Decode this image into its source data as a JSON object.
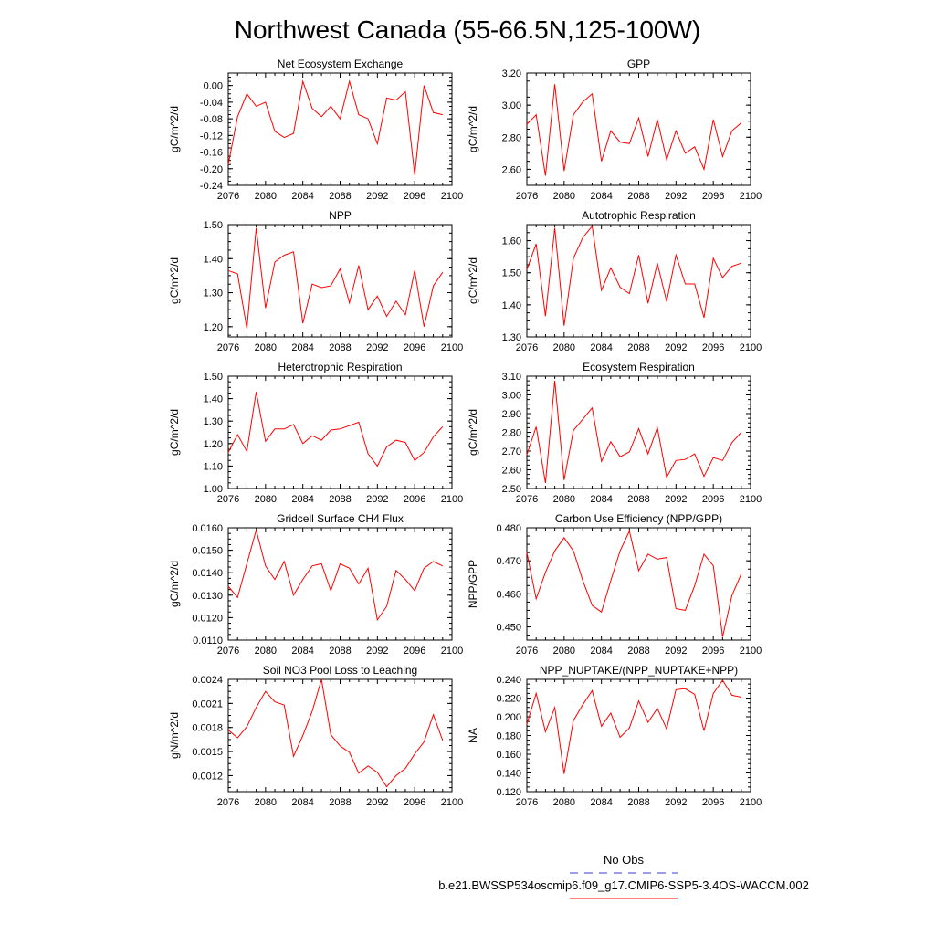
{
  "figure": {
    "title": "Northwest Canada (55-66.5N,125-100W)",
    "legend": {
      "obs_label": "No Obs",
      "obs_color": "#3b3bd6",
      "case_label": "b.e21.BWSSP534oscmip6.f09_g17.CMIP6-SSP5-3.4OS-WACCM.002",
      "case_color": "#ff0000"
    },
    "line_color": "#ff0000"
  },
  "chart_data": [
    {
      "type": "line",
      "title": "Net Ecosystem Exchange",
      "ylabel": "gC/m^2/d",
      "xlabel": "",
      "xlim": [
        2076,
        2100
      ],
      "ylim": [
        -0.24,
        0.03
      ],
      "xticks": [
        "2076",
        "2080",
        "2084",
        "2088",
        "2092",
        "2096",
        "2100"
      ],
      "yticks": [
        "0.00",
        "-0.04",
        "-0.08",
        "-0.12",
        "-0.16",
        "-0.20",
        "-0.24"
      ],
      "x": [
        2076,
        2077,
        2078,
        2079,
        2080,
        2081,
        2082,
        2083,
        2084,
        2085,
        2086,
        2087,
        2088,
        2089,
        2090,
        2091,
        2092,
        2093,
        2094,
        2095,
        2096,
        2097,
        2098,
        2099
      ],
      "series": [
        {
          "values": [
            -0.19,
            -0.075,
            -0.02,
            -0.05,
            -0.04,
            -0.11,
            -0.125,
            -0.115,
            0.01,
            -0.055,
            -0.075,
            -0.05,
            -0.08,
            0.01,
            -0.07,
            -0.08,
            -0.14,
            -0.03,
            -0.035,
            -0.015,
            -0.215,
            0.0,
            -0.065,
            -0.07
          ]
        }
      ]
    },
    {
      "type": "line",
      "title": "GPP",
      "ylabel": "gC/m^2/d",
      "xlabel": "",
      "xlim": [
        2076,
        2100
      ],
      "ylim": [
        2.5,
        3.2
      ],
      "xticks": [
        "2076",
        "2080",
        "2084",
        "2088",
        "2092",
        "2096",
        "2100"
      ],
      "yticks": [
        "2.60",
        "2.80",
        "3.00",
        "3.20"
      ],
      "x": [
        2076,
        2077,
        2078,
        2079,
        2080,
        2081,
        2082,
        2083,
        2084,
        2085,
        2086,
        2087,
        2088,
        2089,
        2090,
        2091,
        2092,
        2093,
        2094,
        2095,
        2096,
        2097,
        2098,
        2099
      ],
      "series": [
        {
          "values": [
            2.88,
            2.94,
            2.56,
            3.13,
            2.59,
            2.94,
            3.02,
            3.07,
            2.65,
            2.84,
            2.77,
            2.76,
            2.92,
            2.68,
            2.91,
            2.66,
            2.84,
            2.7,
            2.74,
            2.6,
            2.91,
            2.68,
            2.84,
            2.89
          ]
        }
      ]
    },
    {
      "type": "line",
      "title": "NPP",
      "ylabel": "gC/m^2/d",
      "xlabel": "",
      "xlim": [
        2076,
        2100
      ],
      "ylim": [
        1.17,
        1.5
      ],
      "xticks": [
        "2076",
        "2080",
        "2084",
        "2088",
        "2092",
        "2096",
        "2100"
      ],
      "yticks": [
        "1.20",
        "1.30",
        "1.40",
        "1.50"
      ],
      "x": [
        2076,
        2077,
        2078,
        2079,
        2080,
        2081,
        2082,
        2083,
        2084,
        2085,
        2086,
        2087,
        2088,
        2089,
        2090,
        2091,
        2092,
        2093,
        2094,
        2095,
        2096,
        2097,
        2098,
        2099
      ],
      "series": [
        {
          "values": [
            1.365,
            1.355,
            1.195,
            1.49,
            1.255,
            1.39,
            1.41,
            1.42,
            1.21,
            1.325,
            1.315,
            1.32,
            1.37,
            1.27,
            1.38,
            1.25,
            1.29,
            1.23,
            1.275,
            1.235,
            1.365,
            1.2,
            1.32,
            1.36
          ]
        }
      ]
    },
    {
      "type": "line",
      "title": "Autotrophic Respiration",
      "ylabel": "gC/m^2/d",
      "xlabel": "",
      "xlim": [
        2076,
        2100
      ],
      "ylim": [
        1.3,
        1.65
      ],
      "xticks": [
        "2076",
        "2080",
        "2084",
        "2088",
        "2092",
        "2096",
        "2100"
      ],
      "yticks": [
        "1.30",
        "1.40",
        "1.50",
        "1.60"
      ],
      "x": [
        2076,
        2077,
        2078,
        2079,
        2080,
        2081,
        2082,
        2083,
        2084,
        2085,
        2086,
        2087,
        2088,
        2089,
        2090,
        2091,
        2092,
        2093,
        2094,
        2095,
        2096,
        2097,
        2098,
        2099
      ],
      "series": [
        {
          "values": [
            1.51,
            1.59,
            1.365,
            1.64,
            1.335,
            1.545,
            1.61,
            1.645,
            1.445,
            1.515,
            1.455,
            1.435,
            1.555,
            1.405,
            1.53,
            1.41,
            1.555,
            1.465,
            1.465,
            1.36,
            1.545,
            1.485,
            1.52,
            1.53
          ]
        }
      ]
    },
    {
      "type": "line",
      "title": "Heterotrophic Respiration",
      "ylabel": "gC/m^2/d",
      "xlabel": "",
      "xlim": [
        2076,
        2100
      ],
      "ylim": [
        1.0,
        1.5
      ],
      "xticks": [
        "2076",
        "2080",
        "2084",
        "2088",
        "2092",
        "2096",
        "2100"
      ],
      "yticks": [
        "1.00",
        "1.10",
        "1.20",
        "1.30",
        "1.40",
        "1.50"
      ],
      "x": [
        2076,
        2077,
        2078,
        2079,
        2080,
        2081,
        2082,
        2083,
        2084,
        2085,
        2086,
        2087,
        2088,
        2089,
        2090,
        2091,
        2092,
        2093,
        2094,
        2095,
        2096,
        2097,
        2098,
        2099
      ],
      "series": [
        {
          "values": [
            1.16,
            1.24,
            1.165,
            1.43,
            1.21,
            1.265,
            1.265,
            1.285,
            1.2,
            1.235,
            1.215,
            1.26,
            1.265,
            1.28,
            1.295,
            1.155,
            1.1,
            1.185,
            1.215,
            1.205,
            1.125,
            1.16,
            1.23,
            1.275
          ]
        }
      ]
    },
    {
      "type": "line",
      "title": "Ecosystem Respiration",
      "ylabel": "gC/m^2/d",
      "xlabel": "",
      "xlim": [
        2076,
        2100
      ],
      "ylim": [
        2.5,
        3.1
      ],
      "xticks": [
        "2076",
        "2080",
        "2084",
        "2088",
        "2092",
        "2096",
        "2100"
      ],
      "yticks": [
        "2.50",
        "2.60",
        "2.70",
        "2.80",
        "2.90",
        "3.00",
        "3.10"
      ],
      "x": [
        2076,
        2077,
        2078,
        2079,
        2080,
        2081,
        2082,
        2083,
        2084,
        2085,
        2086,
        2087,
        2088,
        2089,
        2090,
        2091,
        2092,
        2093,
        2094,
        2095,
        2096,
        2097,
        2098,
        2099
      ],
      "series": [
        {
          "values": [
            2.68,
            2.83,
            2.53,
            3.075,
            2.545,
            2.81,
            2.87,
            2.93,
            2.645,
            2.75,
            2.67,
            2.695,
            2.82,
            2.685,
            2.825,
            2.56,
            2.65,
            2.655,
            2.685,
            2.565,
            2.665,
            2.65,
            2.745,
            2.8
          ]
        }
      ]
    },
    {
      "type": "line",
      "title": "Gridcell Surface CH4 Flux",
      "ylabel": "gC/m^2/d",
      "xlabel": "",
      "xlim": [
        2076,
        2100
      ],
      "ylim": [
        0.011,
        0.016
      ],
      "xticks": [
        "2076",
        "2080",
        "2084",
        "2088",
        "2092",
        "2096",
        "2100"
      ],
      "yticks": [
        "0.0110",
        "0.0120",
        "0.0130",
        "0.0140",
        "0.0150",
        "0.0160"
      ],
      "x": [
        2076,
        2077,
        2078,
        2079,
        2080,
        2081,
        2082,
        2083,
        2084,
        2085,
        2086,
        2087,
        2088,
        2089,
        2090,
        2091,
        2092,
        2093,
        2094,
        2095,
        2096,
        2097,
        2098,
        2099
      ],
      "series": [
        {
          "values": [
            0.0134,
            0.0129,
            0.0144,
            0.0159,
            0.0143,
            0.0137,
            0.0145,
            0.013,
            0.0137,
            0.0143,
            0.0144,
            0.0132,
            0.0144,
            0.0142,
            0.0135,
            0.0142,
            0.0119,
            0.0125,
            0.0141,
            0.0137,
            0.0132,
            0.0142,
            0.0145,
            0.0143
          ]
        }
      ]
    },
    {
      "type": "line",
      "title": "Carbon Use Efficiency (NPP/GPP)",
      "ylabel": "NPP/GPP",
      "xlabel": "",
      "xlim": [
        2076,
        2100
      ],
      "ylim": [
        0.446,
        0.48
      ],
      "xticks": [
        "2076",
        "2080",
        "2084",
        "2088",
        "2092",
        "2096",
        "2100"
      ],
      "yticks": [
        "0.450",
        "0.460",
        "0.470",
        "0.480"
      ],
      "x": [
        2076,
        2077,
        2078,
        2079,
        2080,
        2081,
        2082,
        2083,
        2084,
        2085,
        2086,
        2087,
        2088,
        2089,
        2090,
        2091,
        2092,
        2093,
        2094,
        2095,
        2096,
        2097,
        2098,
        2099
      ],
      "series": [
        {
          "values": [
            0.4725,
            0.4585,
            0.4665,
            0.473,
            0.477,
            0.473,
            0.464,
            0.4565,
            0.4545,
            0.464,
            0.473,
            0.479,
            0.467,
            0.472,
            0.4705,
            0.471,
            0.4555,
            0.455,
            0.4625,
            0.472,
            0.4685,
            0.447,
            0.4595,
            0.466
          ]
        }
      ]
    },
    {
      "type": "line",
      "title": "Soil NO3 Pool Loss to Leaching",
      "ylabel": "gN/m^2/d",
      "xlabel": "",
      "xlim": [
        2076,
        2100
      ],
      "ylim": [
        0.001,
        0.0024
      ],
      "xticks": [
        "2076",
        "2080",
        "2084",
        "2088",
        "2092",
        "2096",
        "2100"
      ],
      "yticks": [
        "0.0012",
        "0.0015",
        "0.0018",
        "0.0021",
        "0.0024"
      ],
      "x": [
        2076,
        2077,
        2078,
        2079,
        2080,
        2081,
        2082,
        2083,
        2084,
        2085,
        2086,
        2087,
        2088,
        2089,
        2090,
        2091,
        2092,
        2093,
        2094,
        2095,
        2096,
        2097,
        2098,
        2099
      ],
      "series": [
        {
          "values": [
            0.00177,
            0.00167,
            0.00181,
            0.00205,
            0.00225,
            0.00212,
            0.00208,
            0.00144,
            0.0017,
            0.002,
            0.0024,
            0.00171,
            0.00157,
            0.00149,
            0.00123,
            0.00132,
            0.00124,
            0.00106,
            0.0012,
            0.00129,
            0.00147,
            0.00162,
            0.00196,
            0.00164
          ]
        }
      ]
    },
    {
      "type": "line",
      "title": "NPP_NUPTAKE/(NPP_NUPTAKE+NPP)",
      "ylabel": "NA",
      "xlabel": "",
      "xlim": [
        2076,
        2100
      ],
      "ylim": [
        0.12,
        0.24
      ],
      "xticks": [
        "2076",
        "2080",
        "2084",
        "2088",
        "2092",
        "2096",
        "2100"
      ],
      "yticks": [
        "0.120",
        "0.140",
        "0.160",
        "0.180",
        "0.200",
        "0.220",
        "0.240"
      ],
      "x": [
        2076,
        2077,
        2078,
        2079,
        2080,
        2081,
        2082,
        2083,
        2084,
        2085,
        2086,
        2087,
        2088,
        2089,
        2090,
        2091,
        2092,
        2093,
        2094,
        2095,
        2096,
        2097,
        2098,
        2099
      ],
      "series": [
        {
          "values": [
            0.192,
            0.225,
            0.184,
            0.21,
            0.139,
            0.196,
            0.213,
            0.228,
            0.19,
            0.204,
            0.178,
            0.188,
            0.217,
            0.194,
            0.209,
            0.187,
            0.229,
            0.23,
            0.224,
            0.185,
            0.225,
            0.239,
            0.223,
            0.221
          ]
        }
      ]
    }
  ]
}
